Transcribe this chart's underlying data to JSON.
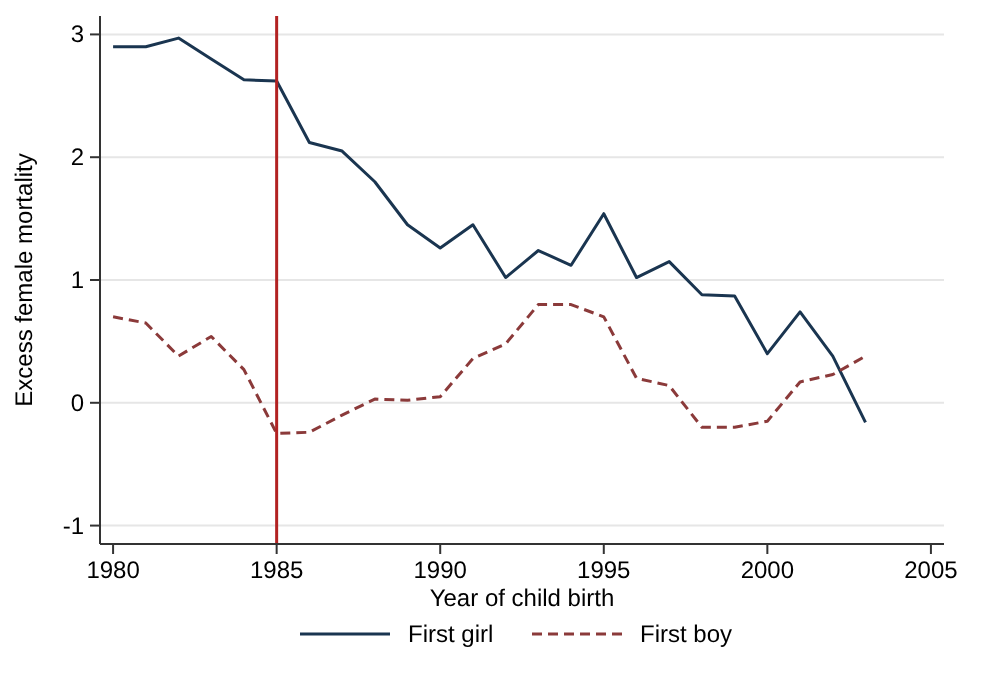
{
  "chart_data": {
    "type": "line",
    "xlabel": "Year of child birth",
    "ylabel": "Excess female mortality",
    "x": [
      1980,
      1981,
      1982,
      1983,
      1984,
      1985,
      1986,
      1987,
      1988,
      1989,
      1990,
      1991,
      1992,
      1993,
      1994,
      1995,
      1996,
      1997,
      1998,
      1999,
      2000,
      2001,
      2002,
      2003
    ],
    "series": [
      {
        "name": "First girl",
        "color": "#1a3550",
        "line_style": "solid",
        "values": [
          2.9,
          2.9,
          2.97,
          2.8,
          2.63,
          2.62,
          2.12,
          2.05,
          1.8,
          1.45,
          1.26,
          1.45,
          1.02,
          1.24,
          1.12,
          1.54,
          1.02,
          1.15,
          0.88,
          0.87,
          0.4,
          0.74,
          0.38,
          -0.16
        ]
      },
      {
        "name": "First boy",
        "color": "#8b3a3a",
        "line_style": "dashed",
        "values": [
          0.7,
          0.65,
          0.38,
          0.54,
          0.27,
          -0.25,
          -0.24,
          -0.1,
          0.03,
          0.02,
          0.05,
          0.36,
          0.48,
          0.8,
          0.8,
          0.7,
          0.2,
          0.14,
          -0.2,
          -0.2,
          -0.15,
          0.17,
          0.23,
          0.38
        ]
      }
    ],
    "xlim": [
      1979.6,
      2005.4
    ],
    "xticks": [
      1980,
      1985,
      1990,
      1995,
      2000,
      2005
    ],
    "ylim": [
      -1.15,
      3.15
    ],
    "yticks": [
      -1,
      0,
      1,
      2,
      3
    ],
    "ref_lines": [
      {
        "axis": "x",
        "value": 1985,
        "color": "#b22222"
      }
    ],
    "grid": "y",
    "legend": "bottom"
  }
}
